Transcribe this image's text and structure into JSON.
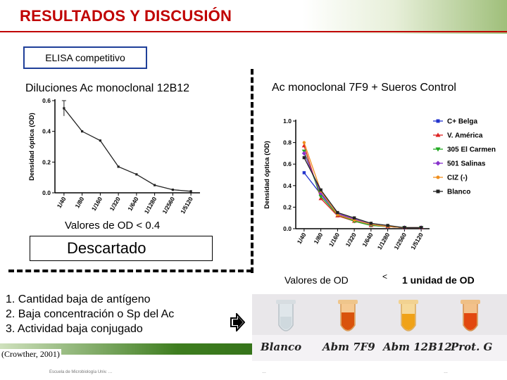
{
  "slide": {
    "title": "RESULTADOS Y DISCUSIÓN",
    "section_label": "ELISA competitivo",
    "left_title": "Diluciones Ac monoclonal 12B12",
    "right_title": "Ac monoclonal 7F9 + Sueros Control",
    "left_note": "Valores de OD < 0.4",
    "discard_label": "Descartado",
    "right_note": {
      "part1": "Valores de OD",
      "symbol": "<",
      "part2": "1 unidad de OD"
    },
    "reasons": [
      "1.  Cantidad baja de antígeno",
      "2.  Baja concentración o Sp del Ac",
      "3.  Actividad baja conjugado"
    ],
    "citation": "(Crowther, 2001)",
    "colors": {
      "title_red": "#c00000",
      "box_blue": "#1f3f99",
      "band_green": "#2d6b16"
    },
    "icons": [
      "arrow-right-icon"
    ]
  },
  "photo": {
    "labels": [
      "Blanco",
      "Abm 7F9",
      "Abm 12B12",
      "Prot. G"
    ]
  },
  "footer": {
    "left": "Escuela de Microbiología Univ. …",
    "center": "…",
    "right": "…"
  },
  "chart_data": [
    {
      "type": "line",
      "ylabel": "Densidad óptica (OD)",
      "xlabel": "",
      "categories": [
        "1/40",
        "1/80",
        "1/160",
        "1/320",
        "1/640",
        "1/1280",
        "1/2560",
        "1/5120"
      ],
      "ylim": [
        0,
        0.6
      ],
      "yticks": [
        "0.0",
        "0.2",
        "0.4",
        "0.6"
      ],
      "series": [
        {
          "values": [
            0.55,
            0.4,
            0.34,
            0.17,
            0.12,
            0.05,
            0.02,
            0.01
          ],
          "err_first": 0.05
        }
      ]
    },
    {
      "type": "line",
      "ylabel": "Densidad óptica (OD)",
      "xlabel": "",
      "categories": [
        "1/40",
        "1/80",
        "1/160",
        "1/320",
        "1/640",
        "1/1280",
        "1/2560",
        "1/5120"
      ],
      "ylim": [
        0,
        1.0
      ],
      "yticks": [
        "0.0",
        "0.2",
        "0.4",
        "0.6",
        "0.8",
        "1.0"
      ],
      "legend_position": "right",
      "series": [
        {
          "name": "C+ Belga",
          "color": "#2233cc",
          "marker": "square",
          "values": [
            0.52,
            0.32,
            0.14,
            0.08,
            0.04,
            0.02,
            0.01,
            0.01
          ]
        },
        {
          "name": "V. América",
          "color": "#dd2222",
          "marker": "triangle-up",
          "values": [
            0.77,
            0.28,
            0.12,
            0.07,
            0.03,
            0.02,
            0.01,
            0.01
          ]
        },
        {
          "name": "305 El Carmen",
          "color": "#22aa22",
          "marker": "triangle-down",
          "values": [
            0.72,
            0.3,
            0.13,
            0.07,
            0.03,
            0.02,
            0.01,
            0.01
          ]
        },
        {
          "name": "501 Salinas",
          "color": "#8833cc",
          "marker": "diamond",
          "values": [
            0.7,
            0.33,
            0.14,
            0.09,
            0.04,
            0.02,
            0.01,
            0.01
          ]
        },
        {
          "name": "CIZ (-)",
          "color": "#f09020",
          "marker": "circle",
          "values": [
            0.8,
            0.35,
            0.13,
            0.08,
            0.04,
            0.02,
            0.01,
            0.01
          ]
        },
        {
          "name": "Blanco",
          "color": "#222222",
          "marker": "square",
          "values": [
            0.66,
            0.36,
            0.15,
            0.1,
            0.05,
            0.03,
            0.01,
            0.01
          ]
        }
      ]
    }
  ]
}
